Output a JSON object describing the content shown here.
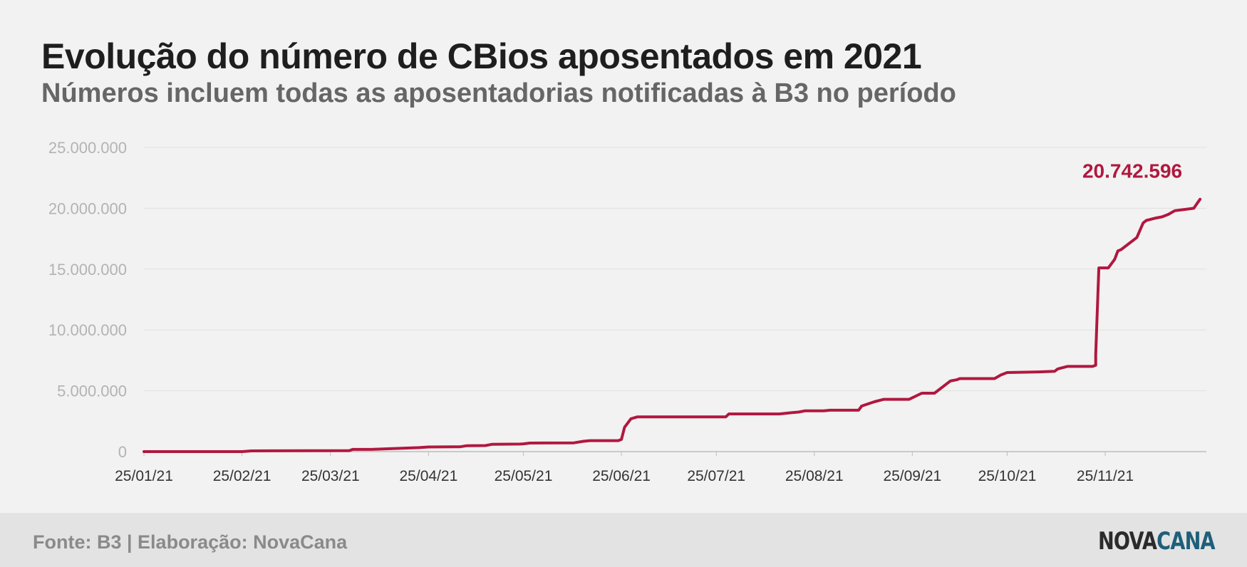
{
  "chart_data": {
    "type": "line",
    "title": "Evolução do número de CBios aposentados em 2021",
    "subtitle": "Números incluem todas as aposentadorias notificadas à B3 no período",
    "ylim": [
      0,
      25000000
    ],
    "yticks": [
      0,
      5000000,
      10000000,
      15000000,
      20000000,
      25000000
    ],
    "ytick_labels": [
      "0",
      "5.000.000",
      "10.000.000",
      "15.000.000",
      "20.000.000",
      "25.000.000"
    ],
    "xlim": [
      "2021-01-25",
      "2021-12-27"
    ],
    "xtick_labels": [
      "25/01/21",
      "25/02/21",
      "25/03/21",
      "25/04/21",
      "25/05/21",
      "25/06/21",
      "25/07/21",
      "25/08/21",
      "25/09/21",
      "25/10/21",
      "25/11/21"
    ],
    "xtick_dates": [
      "2021-01-25",
      "2021-02-25",
      "2021-03-25",
      "2021-04-25",
      "2021-05-25",
      "2021-06-25",
      "2021-07-25",
      "2021-08-25",
      "2021-09-25",
      "2021-10-25",
      "2021-11-25"
    ],
    "grid": true,
    "series": [
      {
        "color": "#b0183f",
        "points": [
          [
            "2021-01-25",
            0
          ],
          [
            "2021-02-25",
            0
          ],
          [
            "2021-02-28",
            60000
          ],
          [
            "2021-03-31",
            80000
          ],
          [
            "2021-04-01",
            180000
          ],
          [
            "2021-04-07",
            180000
          ],
          [
            "2021-04-13",
            240000
          ],
          [
            "2021-04-22",
            330000
          ],
          [
            "2021-04-25",
            380000
          ],
          [
            "2021-05-05",
            400000
          ],
          [
            "2021-05-07",
            480000
          ],
          [
            "2021-05-13",
            500000
          ],
          [
            "2021-05-15",
            600000
          ],
          [
            "2021-05-24",
            620000
          ],
          [
            "2021-05-25",
            640000
          ],
          [
            "2021-05-27",
            700000
          ],
          [
            "2021-06-10",
            720000
          ],
          [
            "2021-06-13",
            850000
          ],
          [
            "2021-06-15",
            900000
          ],
          [
            "2021-06-24",
            900000
          ],
          [
            "2021-06-25",
            1000000
          ],
          [
            "2021-06-26",
            2000000
          ],
          [
            "2021-06-28",
            2700000
          ],
          [
            "2021-06-30",
            2850000
          ],
          [
            "2021-07-28",
            2850000
          ],
          [
            "2021-07-29",
            3100000
          ],
          [
            "2021-08-14",
            3100000
          ],
          [
            "2021-08-18",
            3200000
          ],
          [
            "2021-08-20",
            3250000
          ],
          [
            "2021-08-22",
            3350000
          ],
          [
            "2021-08-28",
            3350000
          ],
          [
            "2021-08-30",
            3400000
          ],
          [
            "2021-09-08",
            3400000
          ],
          [
            "2021-09-09",
            3750000
          ],
          [
            "2021-09-13",
            4100000
          ],
          [
            "2021-09-16",
            4300000
          ],
          [
            "2021-09-24",
            4300000
          ],
          [
            "2021-09-28",
            4800000
          ],
          [
            "2021-10-02",
            4800000
          ],
          [
            "2021-10-07",
            5800000
          ],
          [
            "2021-10-09",
            5900000
          ],
          [
            "2021-10-10",
            6000000
          ],
          [
            "2021-10-21",
            6000000
          ],
          [
            "2021-10-23",
            6300000
          ],
          [
            "2021-10-25",
            6500000
          ],
          [
            "2021-11-04",
            6550000
          ],
          [
            "2021-11-09",
            6600000
          ],
          [
            "2021-11-10",
            6800000
          ],
          [
            "2021-11-13",
            7000000
          ],
          [
            "2021-11-21",
            7000000
          ],
          [
            "2021-11-22",
            7100000
          ],
          [
            "2021-11-22",
            8000000
          ],
          [
            "2021-11-23",
            15100000
          ],
          [
            "2021-11-26",
            15100000
          ],
          [
            "2021-11-28",
            15800000
          ],
          [
            "2021-11-29",
            16500000
          ],
          [
            "2021-11-30",
            16600000
          ],
          [
            "2021-12-05",
            17600000
          ],
          [
            "2021-12-07",
            18800000
          ],
          [
            "2021-12-08",
            19000000
          ],
          [
            "2021-12-11",
            19200000
          ],
          [
            "2021-12-13",
            19300000
          ],
          [
            "2021-12-15",
            19500000
          ],
          [
            "2021-12-17",
            19800000
          ],
          [
            "2021-12-20",
            19900000
          ],
          [
            "2021-12-23",
            20000000
          ],
          [
            "2021-12-25",
            20742596
          ]
        ]
      }
    ],
    "annotation": {
      "text": "20.742.596",
      "x": "2021-12-25",
      "y": 20742596,
      "color": "#b0183f"
    }
  },
  "footer": {
    "source": "Fonte: B3 | Elaboração: NovaCana",
    "logo_part1": "NOVA",
    "logo_part2": "CANA"
  }
}
